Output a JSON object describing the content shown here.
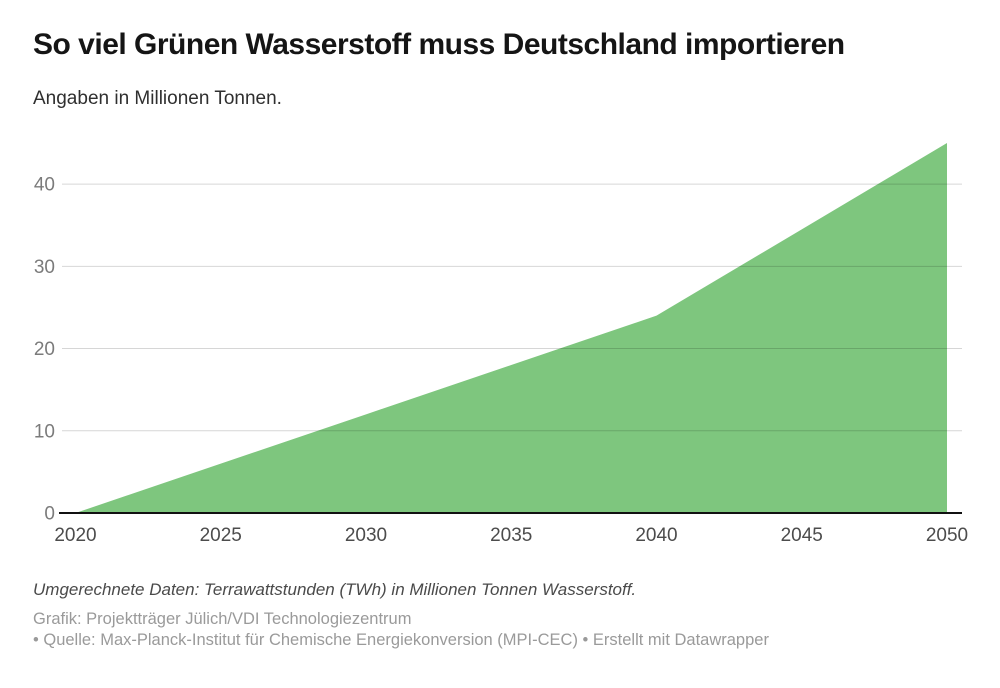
{
  "header": {
    "title": "So viel Grünen Wasserstoff muss Deutschland importieren",
    "subtitle": "Angaben in Millionen Tonnen."
  },
  "chart_data": {
    "type": "area",
    "x": [
      2020,
      2025,
      2030,
      2035,
      2040,
      2045,
      2050
    ],
    "x_tick_labels": [
      "2020",
      "2025",
      "2030",
      "2035",
      "2040",
      "2045",
      "2050"
    ],
    "values": [
      0,
      6,
      12,
      18,
      24,
      34.5,
      45
    ],
    "title": "So viel Grünen Wasserstoff muss Deutschland importieren",
    "subtitle": "Angaben in Millionen Tonnen.",
    "xlabel": "",
    "ylabel": "",
    "ylim": [
      0,
      45
    ],
    "xlim": [
      2020,
      2050
    ],
    "y_ticks": [
      0,
      10,
      20,
      30,
      40
    ],
    "grid": true,
    "legend": false,
    "fill_color": "#7EC67E",
    "baseline_color": "#111111",
    "gridline_color": "rgba(0,0,0,0.16)"
  },
  "footer": {
    "note": "Umgerechnete Daten: Terrawattstunden (TWh) in Millionen Tonnen Wasserstoff.",
    "credit_line1": "Grafik: Projektträger Jülich/VDI Technologiezentrum",
    "credit_line2": "• Quelle: Max-Planck-Institut für Chemische Energiekonversion (MPI-CEC) • Erstellt mit Datawrapper"
  }
}
